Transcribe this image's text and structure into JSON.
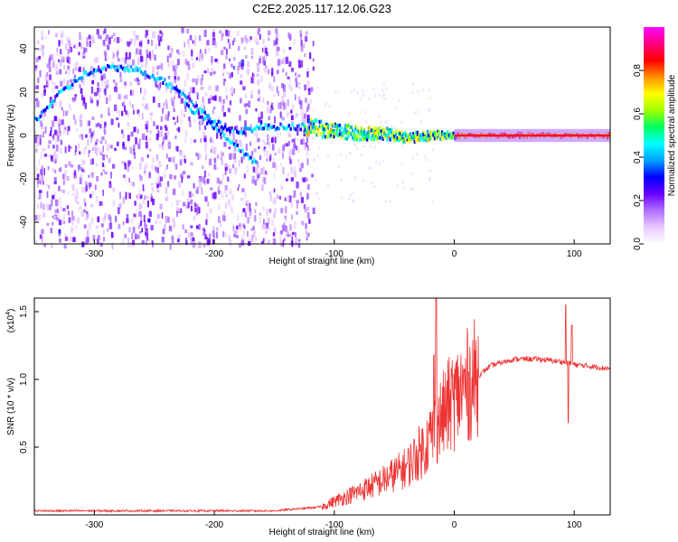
{
  "title": "C2E2.2025.117.12.06.G23",
  "chart_data": [
    {
      "type": "heatmap",
      "name": "spectrogram",
      "xlabel": "Height of straight line (km)",
      "ylabel": "Frequency (Hz)",
      "xlim": [
        -350,
        130
      ],
      "ylim": [
        -50,
        50
      ],
      "x_ticks": [
        -300,
        -200,
        -100,
        0,
        100
      ],
      "y_ticks": [
        -40,
        -20,
        0,
        20,
        40
      ],
      "x_tick_labels": [
        "-300",
        "-200",
        "-100",
        "0",
        "100"
      ],
      "y_tick_labels": [
        "-40",
        "-20",
        "0",
        "20",
        "40"
      ],
      "colorbar": {
        "label": "Normalized spectral amplitude",
        "range": [
          0,
          1
        ],
        "ticks": [
          0.0,
          0.2,
          0.4,
          0.6,
          0.8
        ],
        "tick_labels": [
          "0.0",
          "0.2",
          "0.4",
          "0.6",
          "0.8"
        ],
        "colors": [
          "#ffffff",
          "#e8c8ff",
          "#b070ff",
          "#6a00ff",
          "#0000ff",
          "#00a0ff",
          "#00ffff",
          "#00ff60",
          "#a0ff00",
          "#ffff00",
          "#ff9000",
          "#ff0000",
          "#ff0080",
          "#ff00ff"
        ]
      },
      "traces": [
        {
          "name": "arc",
          "x": [
            -350,
            -330,
            -310,
            -290,
            -270,
            -250,
            -230,
            -215,
            -200,
            -185,
            -170,
            -155,
            -140,
            -125
          ],
          "y": [
            7,
            19,
            28,
            31,
            31,
            27,
            21,
            13,
            6,
            2,
            3,
            4,
            4,
            4
          ]
        },
        {
          "name": "descending",
          "x": [
            -225,
            -210,
            -195,
            -180,
            -165
          ],
          "y": [
            14,
            8,
            1,
            -6,
            -14
          ]
        },
        {
          "name": "main",
          "x": [
            -125,
            -100,
            -80,
            -60,
            -40,
            -20,
            0,
            40,
            80,
            130
          ],
          "y": [
            4,
            2,
            1,
            1,
            -1,
            0,
            0,
            0,
            0,
            0
          ]
        }
      ]
    },
    {
      "type": "line",
      "name": "snr",
      "xlabel": "Height of straight line (km)",
      "ylabel": "SNR (10 * v/v)",
      "scale_label": "(x10",
      "scale_exponent": "4",
      "xlim": [
        -350,
        130
      ],
      "ylim": [
        0,
        1.6
      ],
      "x_ticks": [
        -300,
        -200,
        -100,
        0,
        100
      ],
      "y_ticks": [
        0.5,
        1.0,
        1.5
      ],
      "x_tick_labels": [
        "-300",
        "-200",
        "-100",
        "0",
        "100"
      ],
      "y_tick_labels": [
        "0.5",
        "1.0",
        "1.5"
      ],
      "color": "#ee3333",
      "envelope": {
        "x": [
          -350,
          -150,
          -110,
          -100,
          -80,
          -60,
          -40,
          -25,
          -15,
          -5,
          10,
          30,
          50,
          70,
          90,
          100,
          110,
          130
        ],
        "y": [
          0.03,
          0.03,
          0.06,
          0.1,
          0.17,
          0.25,
          0.35,
          0.5,
          0.65,
          0.8,
          0.95,
          1.1,
          1.15,
          1.15,
          1.13,
          1.11,
          1.1,
          1.08
        ]
      },
      "spikes": [
        {
          "x": -15,
          "y": 1.6
        },
        {
          "x": -17,
          "y": 1.18
        },
        {
          "x": 93,
          "y": 1.55
        },
        {
          "x": 95,
          "y": 0.68
        },
        {
          "x": 98,
          "y": 1.4
        }
      ]
    }
  ]
}
